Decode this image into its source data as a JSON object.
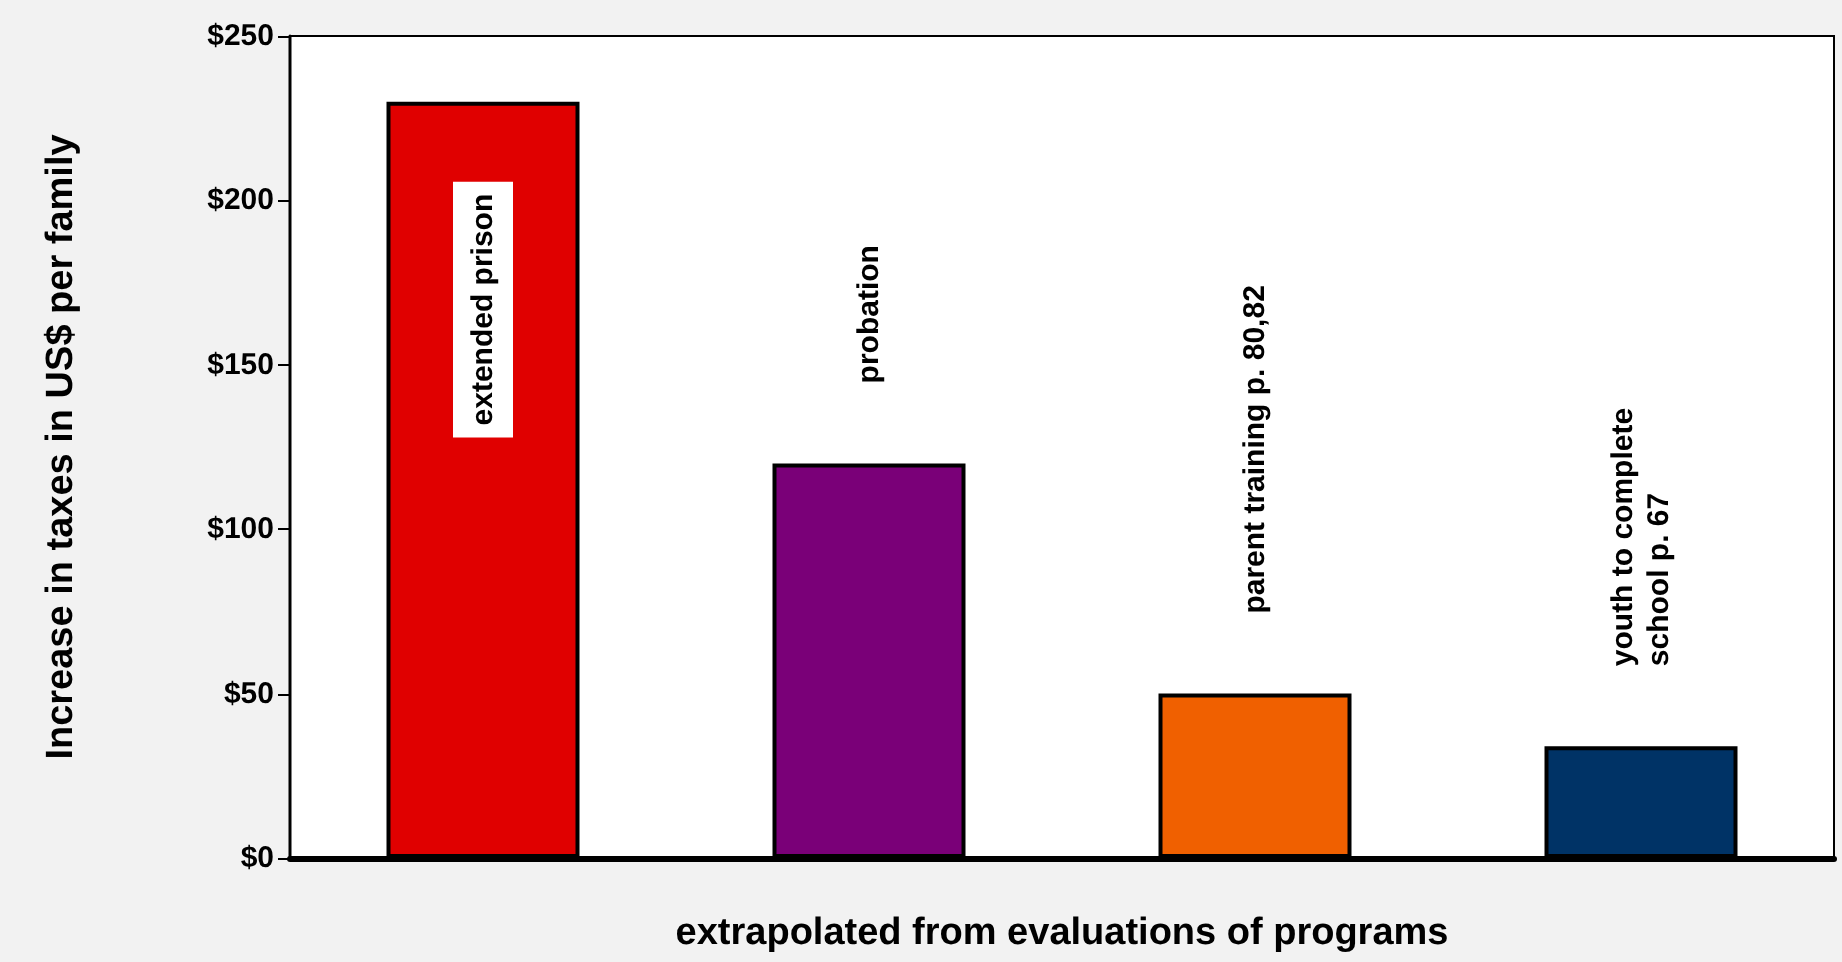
{
  "chart_data": {
    "type": "bar",
    "xlabel": "extrapolated from evaluations of programs",
    "ylabel": "Increase in taxes in US$ per family",
    "categories": [
      "extended prison",
      "probation",
      "parent training p. 80,82",
      "youth to complete\nschool p. 67"
    ],
    "values": [
      230,
      120,
      50,
      34
    ],
    "colors": [
      "#e00000",
      "#7a0078",
      "#f06000",
      "#003366"
    ],
    "ylim": [
      0,
      250
    ],
    "yticks": [
      {
        "value": 0,
        "label": "$0"
      },
      {
        "value": 50,
        "label": "$50"
      },
      {
        "value": 100,
        "label": "$100"
      },
      {
        "value": 150,
        "label": "$150"
      },
      {
        "value": 200,
        "label": "$200"
      },
      {
        "value": 250,
        "label": "$250"
      }
    ],
    "grid": false
  }
}
